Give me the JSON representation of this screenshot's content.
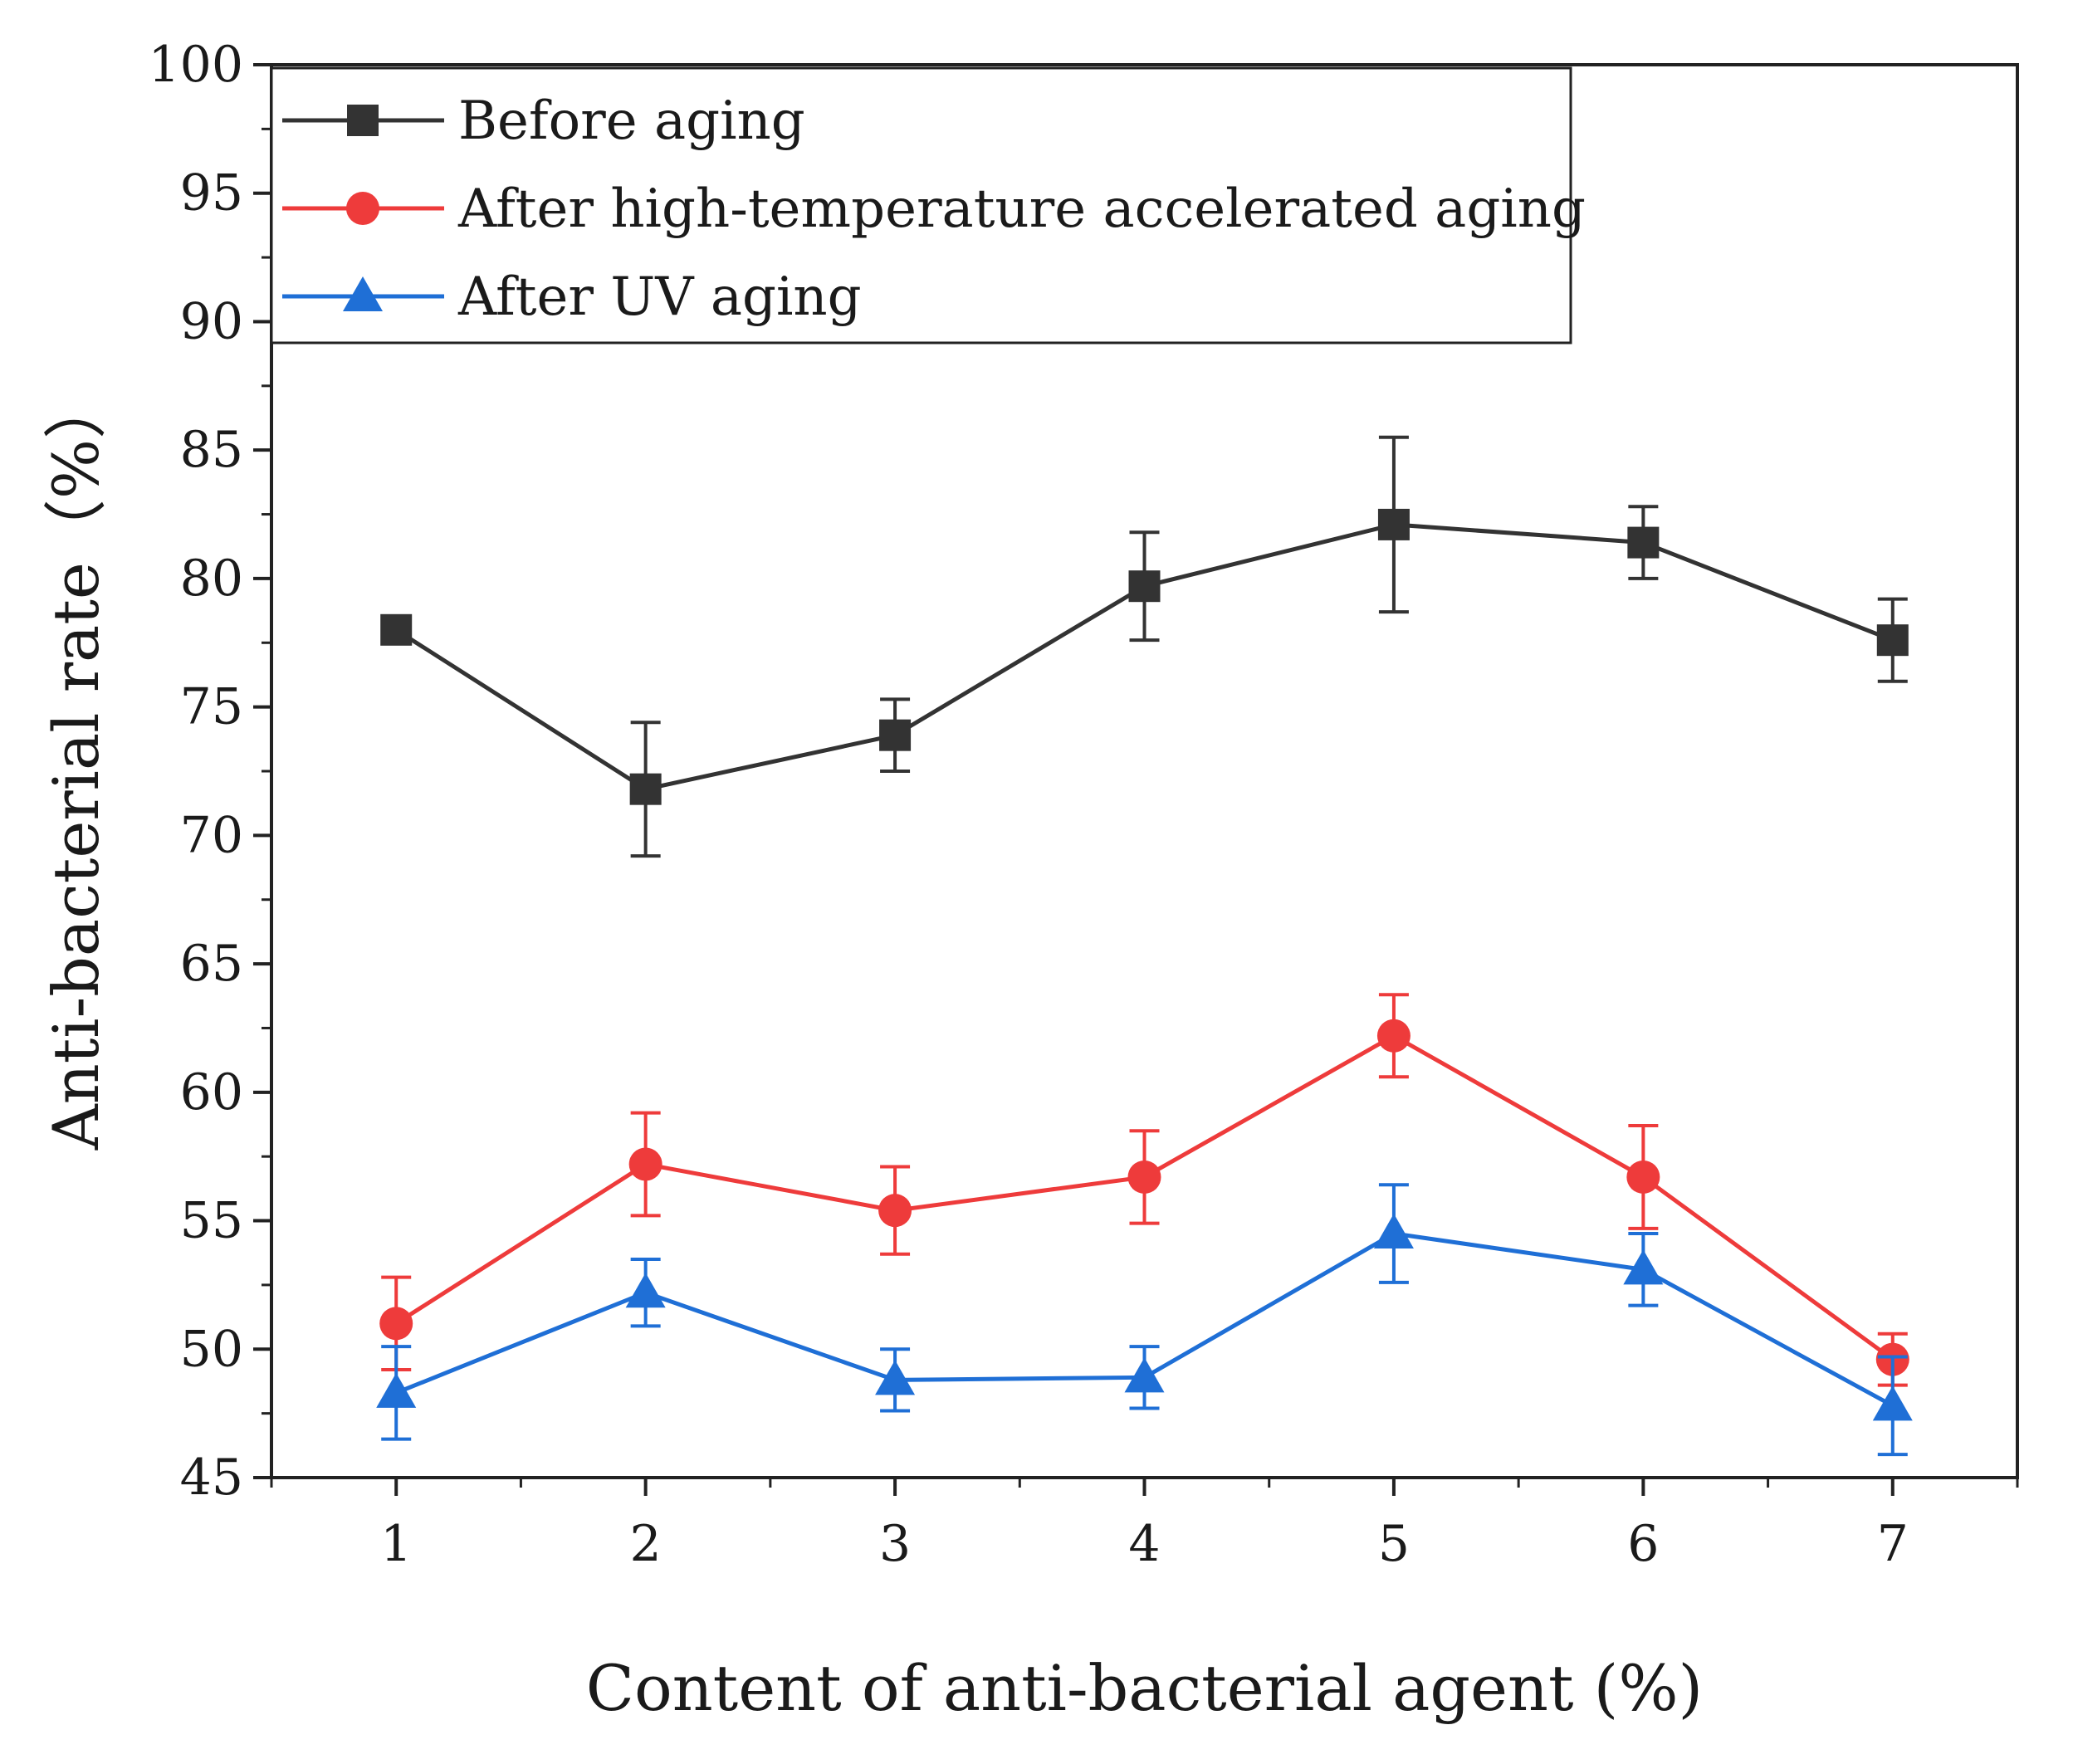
{
  "chart_data": {
    "type": "line",
    "title": "",
    "xlabel": "Content of anti-bacterial agent (%)",
    "ylabel": "Anti-bacterial rate（%）",
    "x": [
      1,
      2,
      3,
      4,
      5,
      6,
      7
    ],
    "x_ticks": [
      "1",
      "2",
      "3",
      "4",
      "5",
      "6",
      "7"
    ],
    "xlim": [
      0.5,
      7.5
    ],
    "ylim": [
      45,
      100
    ],
    "y_ticks": [
      "45",
      "50",
      "55",
      "60",
      "65",
      "70",
      "75",
      "80",
      "85",
      "90",
      "95",
      "100"
    ],
    "grid": false,
    "legend_position": "top-left",
    "series": [
      {
        "name": "Before aging",
        "color": "#333333",
        "marker": "square",
        "values": [
          78.0,
          71.8,
          73.9,
          79.7,
          82.1,
          81.4,
          77.6
        ],
        "errors": [
          0.4,
          2.6,
          1.4,
          2.1,
          3.4,
          1.4,
          1.6
        ]
      },
      {
        "name": "After high-temperature accelerated  aging",
        "color": "#ee3b3b",
        "marker": "circle",
        "values": [
          51.0,
          57.2,
          55.4,
          56.7,
          62.2,
          56.7,
          49.6
        ],
        "errors": [
          1.8,
          2.0,
          1.7,
          1.8,
          1.6,
          2.0,
          1.0
        ]
      },
      {
        "name": "After UV aging",
        "color": "#1f6fd6",
        "marker": "triangle",
        "values": [
          48.3,
          52.2,
          48.8,
          48.9,
          54.5,
          53.1,
          47.8
        ],
        "errors": [
          1.8,
          1.3,
          1.2,
          1.2,
          1.9,
          1.4,
          1.9
        ]
      }
    ]
  }
}
